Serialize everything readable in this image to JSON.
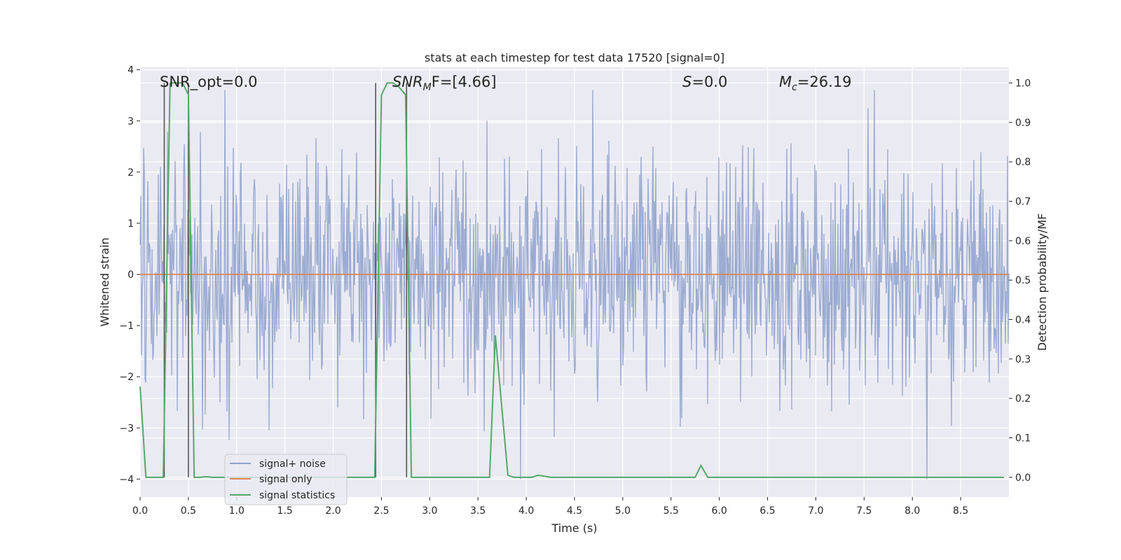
{
  "chart_data": {
    "type": "line",
    "title": "stats at each timestep for test data 17520 [signal=0]",
    "xlabel": "Time (s)",
    "ylabel": "Whitened strain",
    "ylabel_right": "Detection probability/MF",
    "xlim": [
      0.0,
      9.0
    ],
    "ylim": [
      -4.35,
      4.05
    ],
    "ylim_right": [
      -0.05,
      1.04
    ],
    "grid": true,
    "legend_position": "lower-left",
    "x_ticks": [
      0.0,
      0.5,
      1.0,
      1.5,
      2.0,
      2.5,
      3.0,
      3.5,
      4.0,
      4.5,
      5.0,
      5.5,
      6.0,
      6.5,
      7.0,
      7.5,
      8.0,
      8.5
    ],
    "x_tick_labels": [
      "0.0",
      "0.5",
      "1.0",
      "1.5",
      "2.0",
      "2.5",
      "3.0",
      "3.5",
      "4.0",
      "4.5",
      "5.0",
      "5.5",
      "6.0",
      "6.5",
      "7.0",
      "7.5",
      "8.0",
      "8.5"
    ],
    "y_ticks": [
      4,
      3,
      2,
      1,
      0,
      -1,
      -2,
      -3,
      -4
    ],
    "y_tick_labels": [
      "4",
      "3",
      "2",
      "1",
      "0",
      "−1",
      "−2",
      "−3",
      "−4"
    ],
    "y_ticks_right": [
      1.0,
      0.9,
      0.8,
      0.7,
      0.6,
      0.5,
      0.4,
      0.3,
      0.2,
      0.1,
      0.0
    ],
    "y_tick_labels_right": [
      "1.0",
      "0.9",
      "0.8",
      "0.7",
      "0.6",
      "0.5",
      "0.4",
      "0.3",
      "0.2",
      "0.1",
      "0.0"
    ],
    "annotations": {
      "snr_opt": "SNR_opt=0.0",
      "snr_mf_main": "SNR",
      "snr_mf_sub": "M",
      "snr_mf_rest": "F=[4.66]",
      "s_main": "S",
      "s_rest": "=0.0",
      "mc_main": "M",
      "mc_sub": "c",
      "mc_rest": "=26.19"
    },
    "vlines": [
      {
        "x": 0.25,
        "ymin": 0.0,
        "ymax": 1.0
      },
      {
        "x": 0.5,
        "ymin": 0.0,
        "ymax": 1.0
      },
      {
        "x": 2.44,
        "ymin": 0.0,
        "ymax": 1.0
      },
      {
        "x": 2.76,
        "ymin": 0.0,
        "ymax": 1.0
      }
    ],
    "series": [
      {
        "name": "signal+ noise",
        "color": "#8da0cb",
        "axis": "left",
        "x_start": 0.0,
        "x_end": 9.0,
        "typical_amplitude": 1.1,
        "peak_amplitude": 4.0
      },
      {
        "name": "signal only",
        "color": "#dd8452",
        "axis": "left",
        "x": [
          0.0,
          9.0
        ],
        "y": [
          0.0,
          0.0
        ]
      },
      {
        "name": "signal statistics",
        "color": "#55a868",
        "axis": "right",
        "x": [
          0.0,
          0.06,
          0.24,
          0.31,
          0.44,
          0.5,
          0.56,
          0.62,
          0.68,
          0.75,
          2.43,
          2.5,
          2.56,
          2.62,
          2.68,
          2.75,
          2.81,
          3.62,
          3.68,
          3.81,
          3.87,
          4.06,
          4.12,
          4.18,
          4.25,
          5.75,
          5.81,
          5.88,
          8.95
        ],
        "y": [
          0.23,
          0.0,
          0.0,
          1.0,
          1.0,
          0.97,
          0.0,
          0.0,
          0.0015,
          0.0,
          0.0,
          0.97,
          1.0,
          1.0,
          0.99,
          0.97,
          0.0,
          0.0,
          0.36,
          0.005,
          0.0,
          0.0,
          0.005,
          0.003,
          0.0,
          0.0,
          0.03,
          0.0,
          0.0
        ]
      }
    ]
  }
}
